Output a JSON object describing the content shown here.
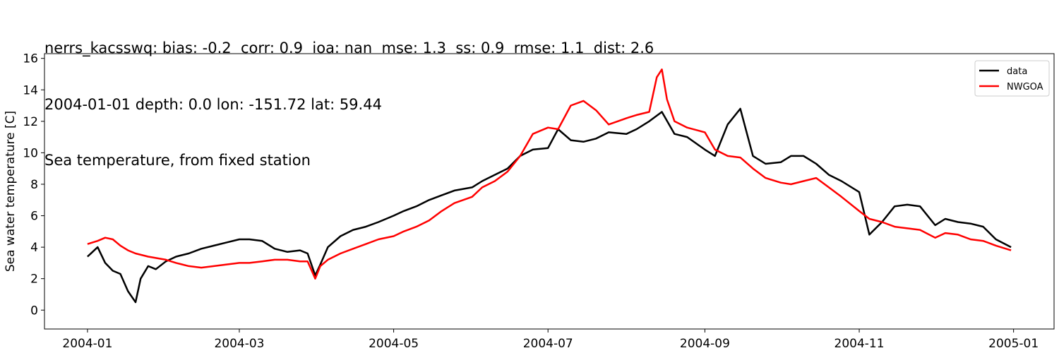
{
  "title_lines": [
    "nerrs_kacsswq: bias: -0.2  corr: 0.9  ioa: nan  mse: 1.3  ss: 0.9  rmse: 1.1  dist: 2.6",
    "2004-01-01 depth: 0.0 lon: -151.72 lat: 59.44",
    "Sea temperature, from fixed station"
  ],
  "chart_data": {
    "type": "line",
    "title": "nerrs_kacsswq: bias: -0.2  corr: 0.9  ioa: nan  mse: 1.3  ss: 0.9  rmse: 1.1  dist: 2.6\n2004-01-01 depth: 0.0 lon: -151.72 lat: 59.44\nSea temperature, from fixed station",
    "xlabel": "",
    "ylabel": "Sea water temperature [C]",
    "xlim": [
      "2003-12-15",
      "2005-01-17"
    ],
    "ylim": [
      -1.2,
      16.3
    ],
    "xticks": [
      "2004-01",
      "2004-03",
      "2004-05",
      "2004-07",
      "2004-09",
      "2004-11",
      "2005-01"
    ],
    "yticks": [
      0,
      2,
      4,
      6,
      8,
      10,
      12,
      14,
      16
    ],
    "grid": false,
    "legend_position": "top-right",
    "series": [
      {
        "name": "data",
        "color": "#000000",
        "x": [
          "2004-01-01",
          "2004-01-05",
          "2004-01-08",
          "2004-01-11",
          "2004-01-14",
          "2004-01-17",
          "2004-01-20",
          "2004-01-22",
          "2004-01-25",
          "2004-01-28",
          "2004-02-01",
          "2004-02-05",
          "2004-02-10",
          "2004-02-15",
          "2004-02-20",
          "2004-02-25",
          "2004-03-01",
          "2004-03-05",
          "2004-03-10",
          "2004-03-15",
          "2004-03-20",
          "2004-03-25",
          "2004-03-28",
          "2004-03-31",
          "2004-04-02",
          "2004-04-05",
          "2004-04-10",
          "2004-04-15",
          "2004-04-20",
          "2004-04-25",
          "2004-05-01",
          "2004-05-05",
          "2004-05-10",
          "2004-05-15",
          "2004-05-20",
          "2004-05-25",
          "2004-06-01",
          "2004-06-05",
          "2004-06-10",
          "2004-06-15",
          "2004-06-20",
          "2004-06-25",
          "2004-07-01",
          "2004-07-05",
          "2004-07-10",
          "2004-07-15",
          "2004-07-20",
          "2004-07-25",
          "2004-08-01",
          "2004-08-05",
          "2004-08-10",
          "2004-08-15",
          "2004-08-20",
          "2004-08-25",
          "2004-09-01",
          "2004-09-05",
          "2004-09-10",
          "2004-09-15",
          "2004-09-20",
          "2004-09-25",
          "2004-10-01",
          "2004-10-05",
          "2004-10-10",
          "2004-10-15",
          "2004-10-20",
          "2004-10-25",
          "2004-11-01",
          "2004-11-05",
          "2004-11-10",
          "2004-11-15",
          "2004-11-20",
          "2004-11-25",
          "2004-12-01",
          "2004-12-05",
          "2004-12-10",
          "2004-12-15",
          "2004-12-20",
          "2004-12-25",
          "2004-12-31"
        ],
        "values": [
          3.4,
          4.0,
          3.0,
          2.5,
          2.3,
          1.2,
          0.5,
          2.0,
          2.8,
          2.6,
          3.1,
          3.4,
          3.6,
          3.9,
          4.1,
          4.3,
          4.5,
          4.5,
          4.4,
          3.9,
          3.7,
          3.8,
          3.6,
          2.2,
          2.9,
          4.0,
          4.7,
          5.1,
          5.3,
          5.6,
          6.0,
          6.3,
          6.6,
          7.0,
          7.3,
          7.6,
          7.8,
          8.2,
          8.6,
          9.0,
          9.8,
          10.2,
          10.3,
          11.5,
          10.8,
          10.7,
          10.9,
          11.3,
          11.2,
          11.5,
          12.0,
          12.6,
          11.2,
          11.0,
          10.2,
          9.8,
          11.8,
          12.8,
          9.8,
          9.3,
          9.4,
          9.8,
          9.8,
          9.3,
          8.6,
          8.2,
          7.5,
          4.8,
          5.6,
          6.6,
          6.7,
          6.6,
          5.4,
          5.8,
          5.6,
          5.5,
          5.3,
          4.5,
          4.0
        ]
      },
      {
        "name": "NWGOA",
        "color": "#ff0000",
        "x": [
          "2004-01-01",
          "2004-01-05",
          "2004-01-08",
          "2004-01-11",
          "2004-01-14",
          "2004-01-17",
          "2004-01-20",
          "2004-01-25",
          "2004-02-01",
          "2004-02-05",
          "2004-02-10",
          "2004-02-15",
          "2004-02-20",
          "2004-02-25",
          "2004-03-01",
          "2004-03-05",
          "2004-03-10",
          "2004-03-15",
          "2004-03-20",
          "2004-03-25",
          "2004-03-28",
          "2004-03-31",
          "2004-04-02",
          "2004-04-05",
          "2004-04-10",
          "2004-04-15",
          "2004-04-20",
          "2004-04-25",
          "2004-05-01",
          "2004-05-05",
          "2004-05-10",
          "2004-05-15",
          "2004-05-20",
          "2004-05-25",
          "2004-06-01",
          "2004-06-05",
          "2004-06-10",
          "2004-06-15",
          "2004-06-20",
          "2004-06-25",
          "2004-07-01",
          "2004-07-05",
          "2004-07-10",
          "2004-07-15",
          "2004-07-20",
          "2004-07-25",
          "2004-08-01",
          "2004-08-05",
          "2004-08-10",
          "2004-08-13",
          "2004-08-15",
          "2004-08-17",
          "2004-08-20",
          "2004-08-25",
          "2004-09-01",
          "2004-09-05",
          "2004-09-10",
          "2004-09-15",
          "2004-09-20",
          "2004-09-25",
          "2004-10-01",
          "2004-10-05",
          "2004-10-10",
          "2004-10-15",
          "2004-10-20",
          "2004-10-25",
          "2004-11-01",
          "2004-11-05",
          "2004-11-10",
          "2004-11-15",
          "2004-11-20",
          "2004-11-25",
          "2004-12-01",
          "2004-12-05",
          "2004-12-10",
          "2004-12-15",
          "2004-12-20",
          "2004-12-25",
          "2004-12-31"
        ],
        "values": [
          4.2,
          4.4,
          4.6,
          4.5,
          4.1,
          3.8,
          3.6,
          3.4,
          3.2,
          3.0,
          2.8,
          2.7,
          2.8,
          2.9,
          3.0,
          3.0,
          3.1,
          3.2,
          3.2,
          3.1,
          3.1,
          2.0,
          2.8,
          3.2,
          3.6,
          3.9,
          4.2,
          4.5,
          4.7,
          5.0,
          5.3,
          5.7,
          6.3,
          6.8,
          7.2,
          7.8,
          8.2,
          8.8,
          9.8,
          11.2,
          11.6,
          11.5,
          13.0,
          13.3,
          12.7,
          11.8,
          12.2,
          12.4,
          12.6,
          14.8,
          15.3,
          13.4,
          12.0,
          11.6,
          11.3,
          10.2,
          9.8,
          9.7,
          9.0,
          8.4,
          8.1,
          8.0,
          8.2,
          8.4,
          7.8,
          7.2,
          6.3,
          5.8,
          5.6,
          5.3,
          5.2,
          5.1,
          4.6,
          4.9,
          4.8,
          4.5,
          4.4,
          4.1,
          3.8
        ]
      }
    ]
  }
}
